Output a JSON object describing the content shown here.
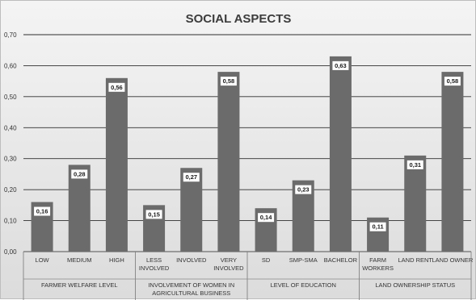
{
  "chart_data": {
    "type": "bar",
    "title": "SOCIAL ASPECTS",
    "ylim": [
      0,
      0.7
    ],
    "yticks": [
      "0,00",
      "0,10",
      "0,20",
      "0,30",
      "0,40",
      "0,50",
      "0,60",
      "0,70"
    ],
    "grid": true,
    "bar_color": "#6b6b6b",
    "groups": [
      {
        "label": [
          "FARMER WELFARE LEVEL"
        ],
        "bars": [
          {
            "category": [
              "LOW"
            ],
            "value": 0.16,
            "label": "0,16"
          },
          {
            "category": [
              "MEDIUM"
            ],
            "value": 0.28,
            "label": "0,28"
          },
          {
            "category": [
              "HIGH"
            ],
            "value": 0.56,
            "label": "0,56"
          }
        ]
      },
      {
        "label": [
          "INVOLVEMENT OF WOMEN IN",
          "AGRICULTURAL BUSINESS"
        ],
        "bars": [
          {
            "category": [
              "LESS",
              "INVOLVED"
            ],
            "value": 0.15,
            "label": "0,15"
          },
          {
            "category": [
              "INVOLVED"
            ],
            "value": 0.27,
            "label": "0,27"
          },
          {
            "category": [
              "VERY",
              "INVOLVED"
            ],
            "value": 0.58,
            "label": "0,58"
          }
        ]
      },
      {
        "label": [
          "LEVEL OF EDUCATION"
        ],
        "bars": [
          {
            "category": [
              "SD"
            ],
            "value": 0.14,
            "label": "0,14"
          },
          {
            "category": [
              "SMP-SMA"
            ],
            "value": 0.23,
            "label": "0,23"
          },
          {
            "category": [
              "BACHELOR"
            ],
            "value": 0.63,
            "label": "0,63"
          }
        ]
      },
      {
        "label": [
          "LAND OWNERSHIP STATUS"
        ],
        "bars": [
          {
            "category": [
              "FARM",
              "WORKERS"
            ],
            "value": 0.11,
            "label": "0,11"
          },
          {
            "category": [
              "LAND RENT"
            ],
            "value": 0.31,
            "label": "0,31"
          },
          {
            "category": [
              "LAND OWNER"
            ],
            "value": 0.58,
            "label": "0,58"
          }
        ]
      }
    ]
  }
}
